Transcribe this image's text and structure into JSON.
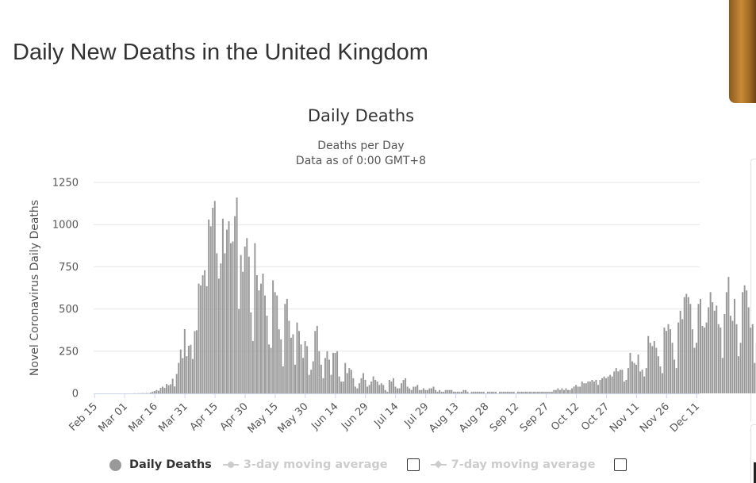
{
  "page": {
    "title": "Daily New Deaths in the United Kingdom"
  },
  "legend": {
    "items": [
      {
        "label": "Daily Deaths",
        "color": "#999999",
        "active": true
      },
      {
        "label": "3-day moving average",
        "color": "#cccccc",
        "active": false
      },
      {
        "label": "7-day moving average",
        "color": "#cccccc",
        "active": false
      }
    ]
  },
  "chart_data": {
    "type": "bar",
    "title": "Daily Deaths",
    "subtitle": [
      "Deaths per Day",
      "Data as of 0:00 GMT+8"
    ],
    "xlabel": "",
    "ylabel": "Novel Coronavirus Daily Deaths",
    "ylim": [
      0,
      1250
    ],
    "yticks": [
      0,
      250,
      500,
      750,
      1000,
      1250
    ],
    "grid": true,
    "bar_color": "#999999",
    "x_start": "2020-02-15",
    "x_end": "2020-12-12",
    "xtick_labels": [
      "Feb 15",
      "Mar 01",
      "Mar 16",
      "Mar 31",
      "Apr 15",
      "Apr 30",
      "May 15",
      "May 30",
      "Jun 14",
      "Jun 29",
      "Jul 14",
      "Jul 29",
      "Aug 13",
      "Aug 28",
      "Sep 12",
      "Sep 27",
      "Oct 12",
      "Oct 27",
      "Nov 11",
      "Nov 26",
      "Dec 11"
    ],
    "series": [
      {
        "name": "Daily Deaths",
        "values": [
          0,
          0,
          0,
          0,
          0,
          0,
          0,
          0,
          0,
          0,
          0,
          0,
          0,
          0,
          0,
          0,
          0,
          0,
          0,
          0,
          1,
          0,
          1,
          1,
          2,
          1,
          2,
          1,
          5,
          10,
          14,
          20,
          16,
          33,
          40,
          33,
          56,
          48,
          54,
          87,
          41,
          115,
          181,
          260,
          209,
          381,
          220,
          282,
          288,
          204,
          369,
          374,
          650,
          640,
          700,
          730,
          635,
          1030,
          990,
          1100,
          1140,
          830,
          680,
          770,
          1035,
          830,
          970,
          1020,
          890,
          900,
          1050,
          1160,
          500,
          820,
          720,
          870,
          920,
          810,
          480,
          310,
          890,
          700,
          610,
          650,
          710,
          580,
          460,
          290,
          270,
          670,
          600,
          580,
          380,
          320,
          160,
          530,
          560,
          430,
          330,
          350,
          170,
          420,
          370,
          290,
          210,
          310,
          280,
          110,
          140,
          190,
          370,
          400,
          250,
          170,
          90,
          210,
          250,
          200,
          110,
          240,
          240,
          250,
          100,
          70,
          70,
          180,
          120,
          150,
          140,
          90,
          40,
          30,
          60,
          90,
          120,
          80,
          40,
          50,
          70,
          100,
          80,
          70,
          50,
          60,
          50,
          20,
          10,
          80,
          70,
          90,
          40,
          30,
          30,
          60,
          80,
          90,
          40,
          30,
          20,
          40,
          40,
          50,
          20,
          20,
          30,
          20,
          20,
          30,
          30,
          40,
          20,
          10,
          20,
          10,
          10,
          20,
          20,
          20,
          20,
          10,
          10,
          10,
          10,
          10,
          20,
          20,
          10,
          0,
          10,
          10,
          10,
          10,
          10,
          10,
          10,
          0,
          10,
          10,
          10,
          10,
          10,
          0,
          10,
          10,
          10,
          10,
          10,
          10,
          10,
          10,
          0,
          10,
          10,
          10,
          10,
          10,
          10,
          10,
          10,
          10,
          10,
          10,
          10,
          10,
          10,
          10,
          10,
          10,
          10,
          20,
          20,
          30,
          20,
          30,
          20,
          30,
          20,
          20,
          30,
          40,
          50,
          40,
          40,
          70,
          60,
          60,
          70,
          70,
          80,
          70,
          80,
          50,
          80,
          90,
          100,
          90,
          100,
          110,
          100,
          130,
          150,
          130,
          140,
          140,
          70,
          80,
          150,
          240,
          190,
          180,
          170,
          230,
          130,
          140,
          100,
          150,
          340,
          300,
          280,
          310,
          270,
          220,
          160,
          120,
          390,
          370,
          410,
          380,
          300,
          200,
          150,
          420,
          490,
          440,
          570,
          590,
          570,
          530,
          380,
          270,
          300,
          530,
          560,
          400,
          390,
          420,
          510,
          600,
          540,
          490,
          520,
          410,
          390,
          210,
          470,
          600,
          690,
          460,
          430,
          560,
          410,
          220,
          300,
          600,
          640,
          610,
          510,
          390,
          410,
          180,
          300,
          610,
          530,
          520,
          420,
          280,
          520
        ]
      }
    ]
  }
}
